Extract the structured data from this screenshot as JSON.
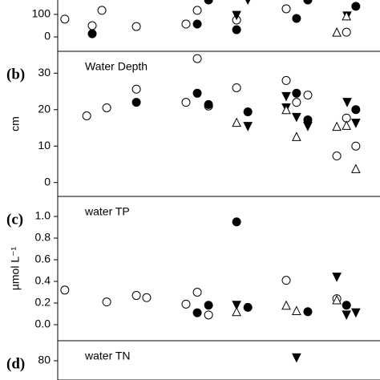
{
  "chart_data": [
    {
      "type": "scatter",
      "xlim": [
        0,
        100
      ],
      "ylim": [
        -64,
        164
      ],
      "yticks": [
        0,
        100
      ],
      "series": [
        {
          "marker": "circle",
          "filled": false,
          "x": [
            2.2,
            10.7,
            13.7,
            24.4,
            43.3,
            39.8,
            55.5,
            70.9,
            89.6
          ],
          "values": [
            79,
            50,
            118,
            46,
            118,
            57,
            75,
            125,
            21
          ]
        },
        {
          "marker": "circle",
          "filled": true,
          "x": [
            10.7,
            43.3,
            46.8,
            55.5,
            74.1,
            77.6,
            92.5
          ],
          "values": [
            14,
            57,
            164,
            32,
            82,
            164,
            136
          ]
        },
        {
          "marker": "triangle-down",
          "filled": true,
          "x": [
            59,
            55.5,
            89.8
          ],
          "values": [
            164,
            96,
            93
          ]
        },
        {
          "marker": "triangle-up",
          "filled": false,
          "x": [
            86.6,
            89.6
          ],
          "values": [
            21,
            93
          ]
        }
      ]
    },
    {
      "type": "scatter",
      "panel_label": "(b)",
      "title": "Water Depth",
      "ylabel": "cm",
      "xlim": [
        0,
        100
      ],
      "ylim": [
        -3.8,
        36
      ],
      "yticks": [
        0,
        10,
        20,
        30
      ],
      "series": [
        {
          "marker": "circle",
          "filled": false,
          "x": [
            9,
            15.2,
            24.4,
            39.8,
            43.3,
            46.8,
            55.5,
            70.9,
            74.1,
            77.6,
            86.6,
            89.6,
            92.5
          ],
          "values": [
            18.3,
            20.5,
            25.6,
            22,
            34,
            21,
            26,
            28,
            22,
            24,
            7.3,
            17.7,
            10
          ]
        },
        {
          "marker": "circle",
          "filled": true,
          "x": [
            24.4,
            43.3,
            46.8,
            59,
            74.1,
            77.6,
            92.5
          ],
          "values": [
            22,
            24.5,
            21.4,
            19.4,
            24.5,
            17.2,
            20
          ]
        },
        {
          "marker": "triangle-down",
          "filled": true,
          "x": [
            70.9,
            74.1,
            77.6,
            89.8,
            92.5,
            59,
            70.9
          ],
          "values": [
            23.6,
            17.9,
            15.4,
            22,
            16.3,
            15.4,
            20.5
          ]
        },
        {
          "marker": "triangle-up",
          "filled": false,
          "x": [
            55.5,
            70.9,
            74.1,
            86.6,
            89.6,
            92.5
          ],
          "values": [
            16.5,
            20,
            12.6,
            15.4,
            15.7,
            3.8
          ]
        }
      ]
    },
    {
      "type": "scatter",
      "panel_label": "(c)",
      "title": "water TP",
      "ylabel": "µmol L⁻¹",
      "xlim": [
        0,
        100
      ],
      "ylim": [
        -0.148,
        1.185
      ],
      "yticks": [
        {
          "value": 0,
          "label": "0.0"
        },
        {
          "value": 0.2,
          "label": "0.2"
        },
        {
          "value": 0.4,
          "label": "0.4"
        },
        {
          "value": 0.6,
          "label": "0.6"
        },
        {
          "value": 0.8,
          "label": "0.8"
        },
        {
          "value": 1,
          "label": "1.0"
        }
      ],
      "series": [
        {
          "marker": "circle",
          "filled": false,
          "x": [
            2.2,
            15.2,
            24.4,
            27.6,
            39.8,
            43.3,
            46.8,
            70.9,
            86.6
          ],
          "values": [
            0.32,
            0.21,
            0.27,
            0.25,
            0.19,
            0.3,
            0.09,
            0.41,
            0.24
          ]
        },
        {
          "marker": "circle",
          "filled": true,
          "x": [
            43.3,
            46.8,
            55.5,
            59,
            77.6,
            89.6
          ],
          "values": [
            0.11,
            0.18,
            0.95,
            0.16,
            0.12,
            0.18
          ]
        },
        {
          "marker": "triangle-down",
          "filled": true,
          "x": [
            55.5,
            86.6,
            89.6,
            92.5
          ],
          "values": [
            0.18,
            0.44,
            0.09,
            0.11
          ]
        },
        {
          "marker": "triangle-up",
          "filled": false,
          "x": [
            55.5,
            70.9,
            74.1,
            86.6
          ],
          "values": [
            0.12,
            0.18,
            0.13,
            0.23
          ]
        }
      ]
    },
    {
      "type": "scatter",
      "panel_label": "(d)",
      "title": "water TN",
      "xlim": [
        0,
        100
      ],
      "ylim": [
        0,
        100
      ],
      "yticks": [
        80
      ],
      "series": [
        {
          "marker": "triangle-down",
          "filled": true,
          "x": [
            74.1
          ],
          "values": [
            83
          ]
        }
      ]
    }
  ]
}
